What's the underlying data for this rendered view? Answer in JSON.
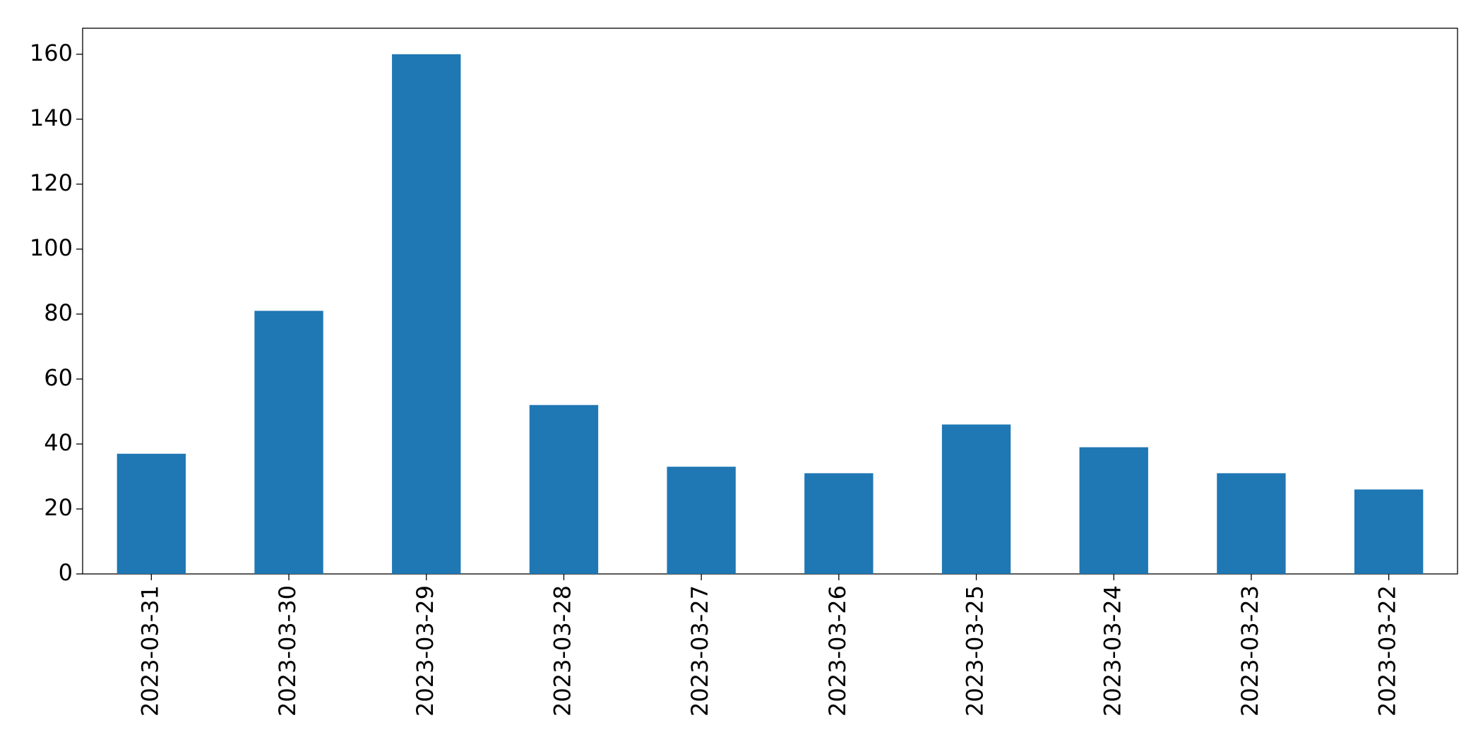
{
  "chart_data": {
    "type": "bar",
    "categories": [
      "2023-03-31",
      "2023-03-30",
      "2023-03-29",
      "2023-03-28",
      "2023-03-27",
      "2023-03-26",
      "2023-03-25",
      "2023-03-24",
      "2023-03-23",
      "2023-03-22"
    ],
    "values": [
      37,
      81,
      160,
      52,
      33,
      31,
      46,
      39,
      31,
      26
    ],
    "color": "#1f77b4",
    "ylim": [
      0,
      168
    ],
    "yticks": [
      0,
      20,
      40,
      60,
      80,
      100,
      120,
      140,
      160
    ],
    "grid": false
  }
}
